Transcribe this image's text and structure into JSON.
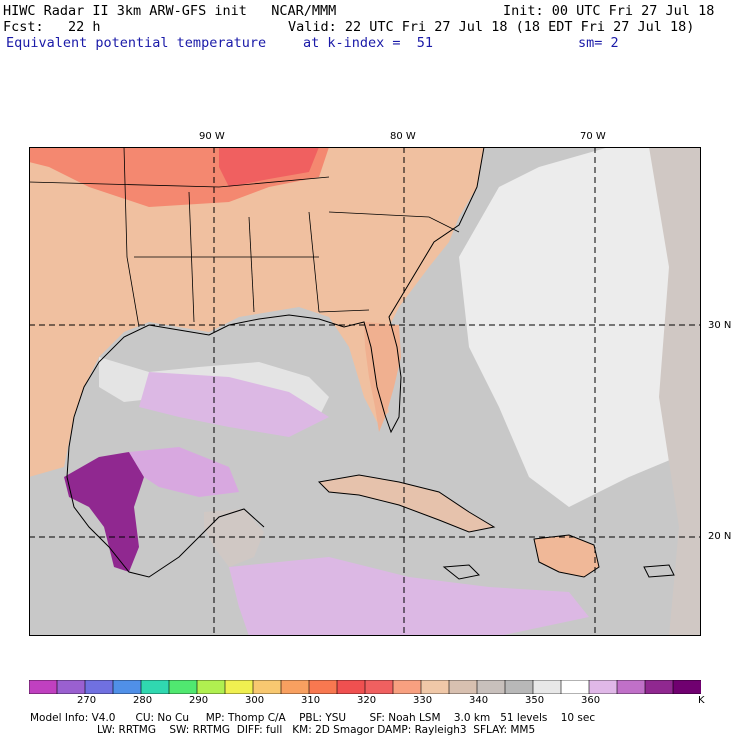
{
  "header": {
    "title": "HIWC Radar II 3km ARW-GFS init   NCAR/MMM",
    "init": "Init: 00 UTC Fri 27 Jul 18",
    "fcst": "Fcst:   22 h",
    "valid": "Valid: 22 UTC Fri 27 Jul 18 (18 EDT Fri 27 Jul 18)",
    "field": "Equivalent potential temperature",
    "kindex": "at k-index =  51",
    "sm": "sm= 2"
  },
  "map": {
    "lon_labels": [
      "90 W",
      "80 W",
      "70 W"
    ],
    "lat_labels": [
      "30 N",
      "20 N"
    ]
  },
  "colorbar": {
    "labels": [
      "270",
      "280",
      "290",
      "300",
      "310",
      "320",
      "330",
      "340",
      "350",
      "360"
    ],
    "unit": "K",
    "colors": [
      "#c040c0",
      "#9a60d0",
      "#7070e0",
      "#5090e8",
      "#30d8b0",
      "#50e870",
      "#b0f050",
      "#f0f050",
      "#f8c870",
      "#f8a060",
      "#f87850",
      "#f05050",
      "#f06060",
      "#f8a080",
      "#f0c8a8",
      "#d8c0b0",
      "#c8c0bc",
      "#b8b8b8",
      "#e8e8e8",
      "#ffffff",
      "#e0b8e8",
      "#c070c8",
      "#902890",
      "#700070"
    ]
  },
  "model_info": {
    "line1": "Model Info: V4.0      CU: No Cu     MP: Thomp C/A    PBL: YSU       SF: Noah LSM    3.0 km   51 levels    10 sec",
    "line2": "LW: RRTMG    SW: RRTMG  DIFF: full   KM: 2D Smagor DAMP: Rayleigh3  SFLAY: MM5"
  }
}
